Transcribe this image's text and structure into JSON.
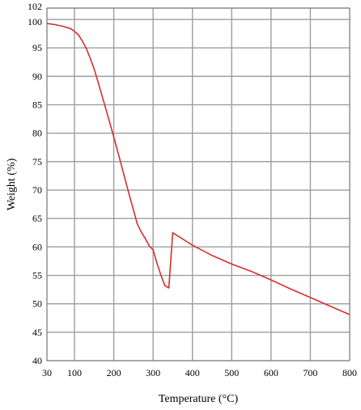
{
  "chart_data": {
    "type": "line",
    "title": "",
    "xlabel": "Temperature (°C)",
    "ylabel": "Weight (%)",
    "xlim": [
      30,
      800
    ],
    "ylim": [
      40,
      102
    ],
    "x_ticks": [
      30,
      100,
      200,
      300,
      400,
      500,
      600,
      700,
      800
    ],
    "y_ticks": [
      40,
      45,
      50,
      55,
      60,
      65,
      70,
      75,
      80,
      85,
      90,
      95,
      100,
      102
    ],
    "grid": true,
    "legend": "none",
    "series": [
      {
        "color": "#d32f2f",
        "x": [
          30,
          50,
          70,
          90,
          100,
          110,
          120,
          130,
          140,
          150,
          160,
          170,
          180,
          190,
          200,
          210,
          220,
          230,
          240,
          250,
          260,
          270,
          280,
          290,
          300,
          310,
          320,
          330,
          340,
          350,
          375,
          400,
          450,
          500,
          550,
          600,
          650,
          700,
          750,
          800
        ],
        "y": [
          99.3,
          99.1,
          98.8,
          98.4,
          97.9,
          97.3,
          96.2,
          94.9,
          93.2,
          91.3,
          89.0,
          86.6,
          84.2,
          81.8,
          79.3,
          76.8,
          74.2,
          71.6,
          69.0,
          66.5,
          64.0,
          62.6,
          61.5,
          60.2,
          59.5,
          57.1,
          55.0,
          53.2,
          52.8,
          62.5,
          61.4,
          60.3,
          58.5,
          57.0,
          55.7,
          54.2,
          52.6,
          51.1,
          49.6,
          48.1
        ]
      }
    ]
  }
}
